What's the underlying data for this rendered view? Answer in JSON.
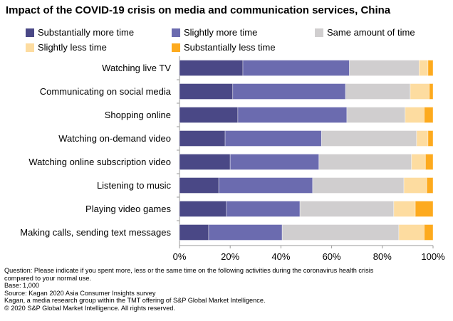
{
  "chart_data": {
    "type": "bar",
    "orientation": "horizontal",
    "stacked": true,
    "title": "Impact of the COVID-19 crisis on media and communication services, China",
    "categories": [
      "Watching live TV",
      "Communicating on social media",
      "Shopping online",
      "Watching on-demand video",
      "Watching online subscription video",
      "Listening to music",
      "Playing video games",
      "Making calls, sending text messages"
    ],
    "series": [
      {
        "name": "Substantially more time",
        "color": "#4a4886",
        "values": [
          25,
          21,
          23,
          18,
          20,
          15.5,
          18.5,
          11.5
        ]
      },
      {
        "name": "Slightly more time",
        "color": "#6b6baf",
        "values": [
          42,
          44.5,
          43,
          38,
          35,
          37,
          29,
          29
        ]
      },
      {
        "name": "Same amount of time",
        "color": "#d0cecf",
        "values": [
          27.5,
          25.5,
          23,
          37.5,
          36.5,
          36,
          37,
          46
        ]
      },
      {
        "name": "Slightly less time",
        "color": "#fddca0",
        "values": [
          3.5,
          7.5,
          7.5,
          4.5,
          5.5,
          9,
          8.5,
          10
        ]
      },
      {
        "name": "Substantially less time",
        "color": "#fdaa1e",
        "values": [
          2,
          1.5,
          3.5,
          2,
          3,
          2.5,
          7,
          3.5
        ]
      }
    ],
    "xlim": [
      0,
      100
    ],
    "xticks": [
      "0%",
      "20%",
      "40%",
      "60%",
      "80%",
      "100%"
    ],
    "grid": false,
    "legend_position": "top"
  },
  "footnotes": [
    "Question: Please indicate if you spent more, less or the same time on the following activities during the coronavirus health crisis",
    "compared to your normal use.",
    "Base: 1,000",
    "Source: Kagan 2020 Asia Consumer Insights survey",
    "Kagan, a media research group within the TMT offering of S&P Global Market Intelligence.",
    "© 2020 S&P Global Market Intelligence. All rights reserved."
  ]
}
